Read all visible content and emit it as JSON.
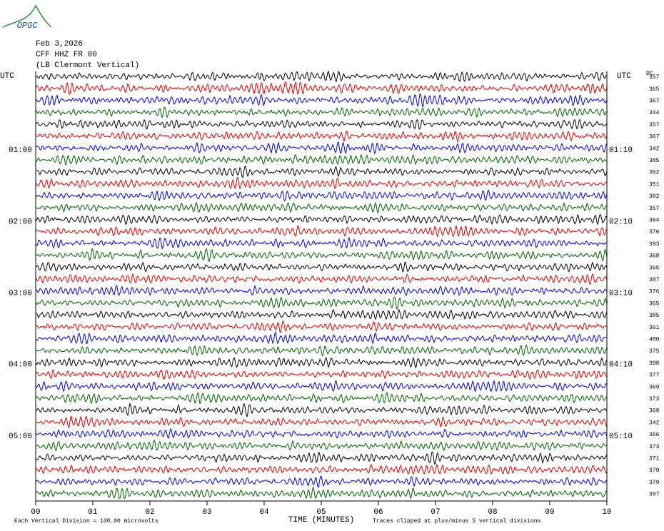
{
  "logo": "OPGC",
  "header": {
    "lines": [
      "Feb 3,2026",
      "CFF HHZ FR 00",
      "(LB  Clermont Vertical)"
    ]
  },
  "left_title": "UTC",
  "right_title": "UTC",
  "dc_title": "DC",
  "rows": {
    "left": [
      null,
      null,
      null,
      null,
      null,
      null,
      "01:00",
      null,
      null,
      null,
      null,
      null,
      "02:00",
      null,
      null,
      null,
      null,
      null,
      "03:00",
      null,
      null,
      null,
      null,
      null,
      "04:00",
      null,
      null,
      null,
      null,
      null,
      "05:00",
      null,
      null,
      null,
      null,
      null
    ],
    "right": [
      null,
      null,
      null,
      null,
      null,
      null,
      "01:10",
      null,
      null,
      null,
      null,
      null,
      "02:10",
      null,
      null,
      null,
      null,
      null,
      "03:10",
      null,
      null,
      null,
      null,
      null,
      "04:10",
      null,
      null,
      null,
      null,
      null,
      "05:10",
      null,
      null,
      null,
      null,
      null
    ],
    "dc": [
      "357",
      "365",
      "367",
      "344",
      "357",
      "367",
      "342",
      "385",
      "362",
      "351",
      "382",
      "357",
      "364",
      "376",
      "393",
      "368",
      "365",
      "387",
      "376",
      "365",
      "385",
      "361",
      "400",
      "375",
      "398",
      "377",
      "369",
      "373",
      "369",
      "342",
      "366",
      "373",
      "371",
      "370",
      "379",
      "397"
    ],
    "colors": [
      "#000000",
      "#e00000",
      "#0000e0",
      "#006000"
    ]
  },
  "x_axis": {
    "ticks": [
      "00",
      "01",
      "02",
      "03",
      "04",
      "05",
      "06",
      "07",
      "08",
      "09",
      "10"
    ],
    "label": "TIME (MINUTES)"
  },
  "footer": {
    "left": "Each Vertical Division =  100.00 microvolts",
    "right": "Traces clipped at plus/minus 5 vertical divisions"
  }
}
